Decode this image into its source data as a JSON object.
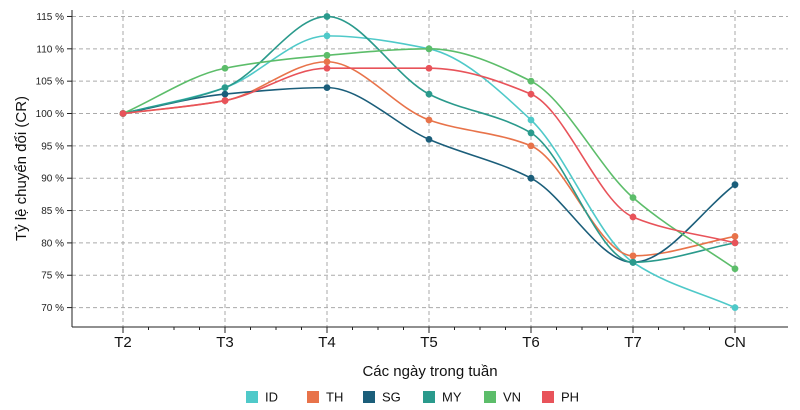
{
  "chart_data": {
    "type": "line",
    "xlabel": "Các ngày trong tuần",
    "ylabel": "Tỷ lệ chuyển đổi (CR)",
    "categories": [
      "T2",
      "T3",
      "T4",
      "T5",
      "T6",
      "T7",
      "CN"
    ],
    "ylim": [
      67,
      116
    ],
    "yticks": [
      "70 %",
      "75 %",
      "80 %",
      "85 %",
      "90 %",
      "95 %",
      "100 %",
      "105 %",
      "110 %",
      "115 %"
    ],
    "ytick_values": [
      70,
      75,
      80,
      85,
      90,
      95,
      100,
      105,
      110,
      115
    ],
    "grid": true,
    "legend_position": "bottom",
    "series": [
      {
        "name": "ID",
        "color": "#4fc9c9",
        "values": [
          100,
          104,
          112,
          110,
          99,
          77,
          70
        ]
      },
      {
        "name": "TH",
        "color": "#e8734a",
        "values": [
          100,
          102,
          108,
          99,
          95,
          78,
          81
        ]
      },
      {
        "name": "SG",
        "color": "#1b5e7a",
        "values": [
          100,
          103,
          104,
          96,
          90,
          77,
          89
        ]
      },
      {
        "name": "MY",
        "color": "#2a9a8c",
        "values": [
          100,
          104,
          115,
          103,
          97,
          77,
          80
        ]
      },
      {
        "name": "VN",
        "color": "#5cbd6a",
        "values": [
          100,
          107,
          109,
          110,
          105,
          87,
          76
        ]
      },
      {
        "name": "PH",
        "color": "#e8535a",
        "values": [
          100,
          102,
          107,
          107,
          103,
          84,
          80
        ]
      }
    ]
  }
}
